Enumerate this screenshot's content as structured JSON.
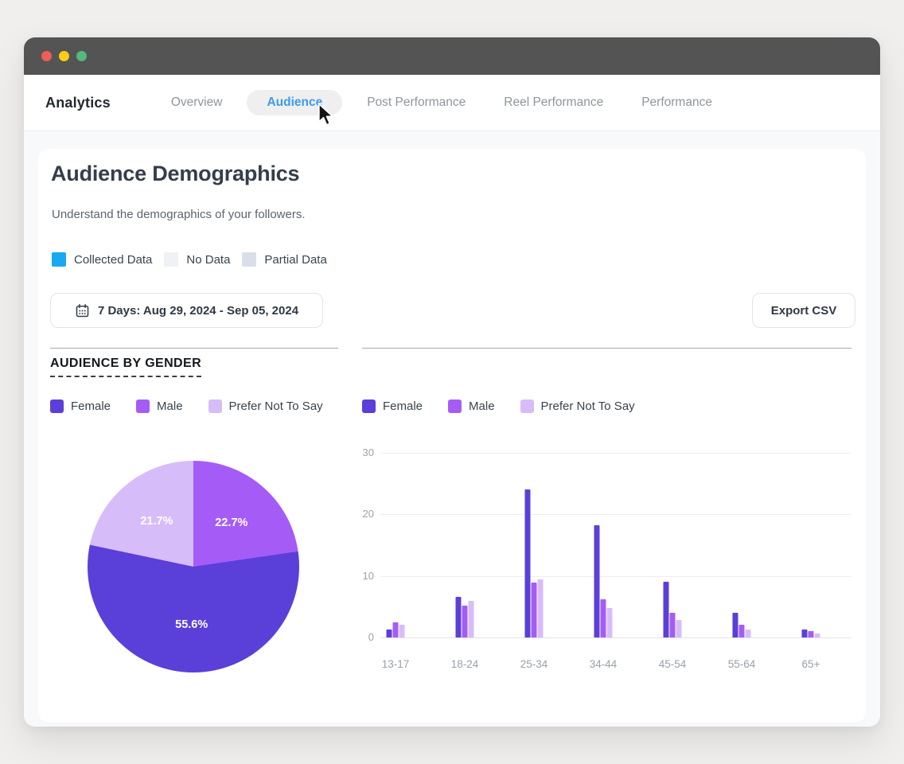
{
  "nav": {
    "brand": "Analytics",
    "tabs": [
      {
        "label": "Overview",
        "active": false
      },
      {
        "label": "Audience",
        "active": true
      },
      {
        "label": "Post Performance",
        "active": false
      },
      {
        "label": "Reel Performance",
        "active": false
      },
      {
        "label": "Performance",
        "active": false
      }
    ],
    "active_tab_color": "#3E9BED"
  },
  "page": {
    "title": "Audience Demographics",
    "subtitle": "Understand the demographics of your followers.",
    "status_legend": [
      {
        "label": "Collected Data",
        "color": "#19A9F1"
      },
      {
        "label": "No Data",
        "color": "#EFF1F4"
      },
      {
        "label": "Partial Data",
        "color": "#D9DFE8"
      }
    ],
    "date_range_button": "7 Days: Aug 29, 2024 - Sep 05, 2024",
    "export_button": "Export CSV",
    "section_title": "AUDIENCE BY GENDER"
  },
  "chart_data": [
    {
      "type": "pie",
      "title": "Audience By Gender",
      "legend": [
        {
          "label": "Female",
          "color": "#5B3FD9"
        },
        {
          "label": "Male",
          "color": "#A55CF6"
        },
        {
          "label": "Prefer Not To Say",
          "color": "#D7BCFA"
        }
      ],
      "slices": [
        {
          "label": "Male",
          "value": 22.7,
          "color": "#A55CF6"
        },
        {
          "label": "Female",
          "value": 55.6,
          "color": "#5B3FD9"
        },
        {
          "label": "Prefer Not To Say",
          "value": 21.7,
          "color": "#D7BCFA"
        }
      ],
      "start_angle": "12 o'clock",
      "direction": "clockwise",
      "value_format": "percent"
    },
    {
      "type": "bar",
      "title": "Audience By Gender By Age",
      "categories": [
        "13-17",
        "18-24",
        "25-34",
        "34-44",
        "45-54",
        "55-64",
        "65+"
      ],
      "series": [
        {
          "name": "Female",
          "color": "#5B3FD9",
          "values": [
            1.3,
            6.6,
            24,
            18.3,
            9,
            4,
            1.3
          ]
        },
        {
          "name": "Male",
          "color": "#A55CF6",
          "values": [
            2.5,
            5.2,
            8.9,
            6.2,
            4,
            2.1,
            1.1
          ]
        },
        {
          "name": "Prefer Not To Say",
          "color": "#D7BCFA",
          "values": [
            2.1,
            5.9,
            9.4,
            4.8,
            2.8,
            1.3,
            0.6
          ]
        }
      ],
      "ylim": [
        0,
        30
      ],
      "yticks": [
        0,
        10,
        20,
        30
      ],
      "grid": true,
      "legend_position": "top"
    }
  ]
}
